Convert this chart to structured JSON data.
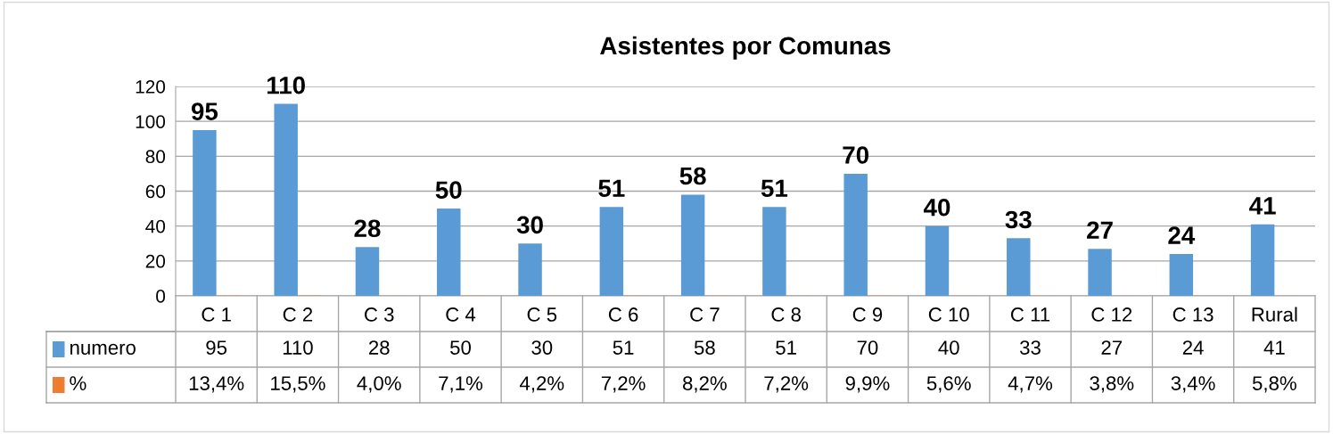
{
  "chart_data": {
    "type": "bar",
    "title": "Asistentes por Comunas",
    "categories": [
      "C 1",
      "C 2",
      "C 3",
      "C 4",
      "C 5",
      "C 6",
      "C 7",
      "C 8",
      "C 9",
      "C 10",
      "C 11",
      "C 12",
      "C 13",
      "Rural"
    ],
    "series": [
      {
        "name": "numero",
        "color": "#5b9bd5",
        "values": [
          95,
          110,
          28,
          50,
          30,
          51,
          58,
          51,
          70,
          40,
          33,
          27,
          24,
          41
        ],
        "value_labels": [
          "95",
          "110",
          "28",
          "50",
          "30",
          "51",
          "58",
          "51",
          "70",
          "40",
          "33",
          "27",
          "24",
          "41"
        ]
      },
      {
        "name": "%",
        "color": "#ed7d31",
        "values": [
          0.134,
          0.155,
          0.04,
          0.071,
          0.042,
          0.072,
          0.082,
          0.072,
          0.099,
          0.056,
          0.047,
          0.038,
          0.034,
          0.058
        ],
        "value_labels": [
          "13,4%",
          "15,5%",
          "4,0%",
          "7,1%",
          "4,2%",
          "7,2%",
          "8,2%",
          "7,2%",
          "9,9%",
          "5,6%",
          "4,7%",
          "3,8%",
          "3,4%",
          "5,8%"
        ]
      }
    ],
    "ylim": [
      0,
      120
    ],
    "yticks": [
      0,
      20,
      40,
      60,
      80,
      100,
      120
    ],
    "grid": "y",
    "legend": "bottom"
  }
}
